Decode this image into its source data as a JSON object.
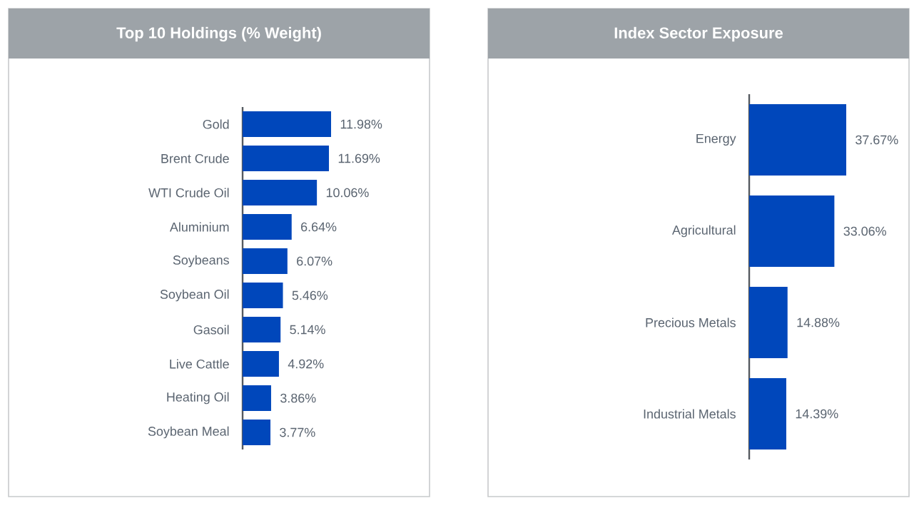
{
  "chart_data": [
    {
      "type": "bar",
      "orientation": "horizontal",
      "title": "Top 10 Holdings (% Weight)",
      "categories": [
        "Gold",
        "Brent Crude",
        "WTI Crude Oil",
        "Aluminium",
        "Soybeans",
        "Soybean Oil",
        "Gasoil",
        "Live Cattle",
        "Heating Oil",
        "Soybean Meal"
      ],
      "values": [
        11.98,
        11.69,
        10.06,
        6.64,
        6.07,
        5.46,
        5.14,
        4.92,
        3.86,
        3.77
      ],
      "value_labels": [
        "11.98%",
        "11.69%",
        "10.06%",
        "6.64%",
        "6.07%",
        "5.46%",
        "5.14%",
        "4.92%",
        "3.86%",
        "3.77%"
      ],
      "color": "#0047bb"
    },
    {
      "type": "bar",
      "orientation": "horizontal",
      "title": "Index Sector Exposure",
      "categories": [
        "Energy",
        "Agricultural",
        "Precious Metals",
        "Industrial Metals"
      ],
      "values": [
        37.67,
        33.06,
        14.88,
        14.39
      ],
      "value_labels": [
        "37.67%",
        "33.06%",
        "14.88%",
        "14.39%"
      ],
      "color": "#0047bb"
    }
  ]
}
